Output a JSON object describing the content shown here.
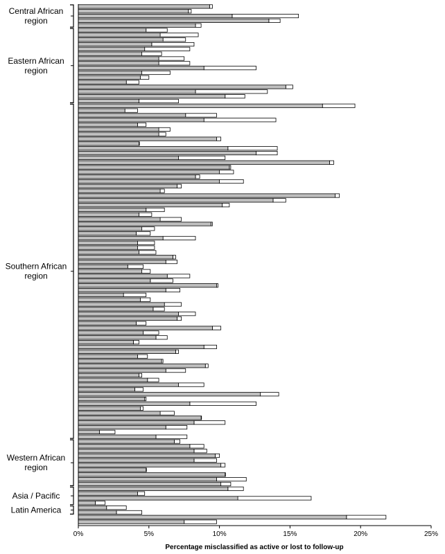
{
  "chart_data": {
    "type": "bar",
    "orientation": "horizontal",
    "title": "",
    "xlabel": "Percentage misclassified as active or lost to follow-up",
    "ylabel": "",
    "xlim": [
      0,
      25
    ],
    "x_ticks": [
      "0%",
      "5%",
      "10%",
      "15%",
      "20%",
      "25%"
    ],
    "grid": false,
    "legend": "none",
    "colors": {
      "lower": "#bfbfbf",
      "upper": "#ffffff",
      "stroke": "#000000"
    },
    "groups": [
      {
        "label": "Central African region",
        "lines": [
          "Central African",
          "region"
        ],
        "start": 0,
        "end": 4
      },
      {
        "label": "Eastern African region",
        "lines": [
          "Eastern African",
          "region"
        ],
        "start": 5,
        "end": 20
      },
      {
        "label": "Southern African region",
        "lines": [
          "Southern African",
          "region"
        ],
        "start": 21,
        "end": 91
      },
      {
        "label": "Western African region",
        "lines": [
          "Western African",
          "region"
        ],
        "start": 92,
        "end": 101
      },
      {
        "label": "Asia / Pacific",
        "lines": [
          "Asia / Pacific"
        ],
        "start": 102,
        "end": 105
      },
      {
        "label": "Latin America",
        "lines": [
          "Latin America"
        ],
        "start": 106,
        "end": 107
      }
    ],
    "series": [
      {
        "role": "lower",
        "values": [
          9.3,
          7.8,
          10.9,
          13.5,
          8.3,
          4.8,
          5.8,
          6.0,
          5.2,
          4.7,
          4.5,
          5.7,
          5.7,
          8.9,
          4.5,
          4.4,
          3.4,
          14.7,
          8.3,
          10.4,
          4.3,
          17.3,
          3.3,
          7.6,
          8.9,
          4.2,
          5.7,
          5.7,
          9.8,
          4.3,
          10.6,
          12.6,
          7.1,
          17.8,
          10.7,
          10.0,
          8.3,
          10.0,
          7.0,
          5.8,
          18.2,
          13.8,
          10.2,
          4.8,
          4.3,
          5.8,
          9.4,
          4.5,
          4.1,
          6.0,
          4.2,
          4.2,
          4.3,
          6.7,
          6.2,
          3.5,
          4.5,
          6.3,
          5.1,
          9.8,
          6.2,
          3.2,
          4.4,
          6.1,
          5.3,
          7.1,
          7.0,
          4.1,
          9.5,
          4.6,
          5.5,
          3.9,
          8.9,
          6.9,
          4.2,
          5.9,
          9.0,
          6.2,
          4.3,
          4.9,
          7.1,
          4.0,
          12.9,
          4.7,
          7.9,
          4.4,
          5.8,
          8.7,
          8.2,
          6.2,
          1.5,
          5.5,
          6.8,
          7.9,
          8.2,
          9.7,
          8.2,
          10.1,
          4.8,
          10.4,
          9.8,
          10.1,
          10.6,
          4.2,
          11.3,
          1.2,
          2.0,
          2.7,
          19.0,
          7.5
        ],
        "upper_total_values": [
          9.5,
          8.0,
          15.6,
          14.3,
          8.7,
          6.3,
          8.5,
          7.6,
          8.2,
          7.9,
          5.9,
          7.5,
          7.9,
          12.6,
          6.5,
          5.0,
          4.3,
          15.2,
          13.4,
          11.8,
          7.1,
          19.6,
          4.2,
          9.8,
          14.0,
          4.8,
          6.5,
          6.2,
          10.1,
          4.3,
          14.1,
          14.1,
          10.4,
          18.1,
          10.8,
          11.0,
          8.6,
          11.7,
          7.3,
          6.1,
          18.5,
          14.7,
          10.7,
          6.1,
          5.2,
          7.3,
          9.5,
          5.4,
          5.1,
          8.3,
          5.4,
          5.4,
          5.5,
          6.9,
          7.0,
          4.6,
          5.1,
          7.9,
          6.7,
          9.9,
          7.2,
          4.8,
          5.1,
          7.3,
          6.1,
          8.3,
          7.3,
          4.8,
          10.1,
          5.7,
          6.3,
          4.3,
          9.8,
          7.1,
          4.9,
          6.0,
          9.2,
          7.6,
          4.5,
          5.7,
          8.9,
          4.6,
          14.2,
          4.8,
          12.6,
          4.6,
          6.8,
          8.7,
          10.4,
          7.7,
          2.6,
          7.7,
          7.2,
          8.9,
          9.1,
          10.0,
          9.8,
          10.4,
          4.8,
          10.4,
          11.9,
          10.8,
          11.7,
          4.7,
          16.5,
          1.9,
          3.4,
          4.5,
          21.8,
          9.8
        ]
      }
    ]
  }
}
